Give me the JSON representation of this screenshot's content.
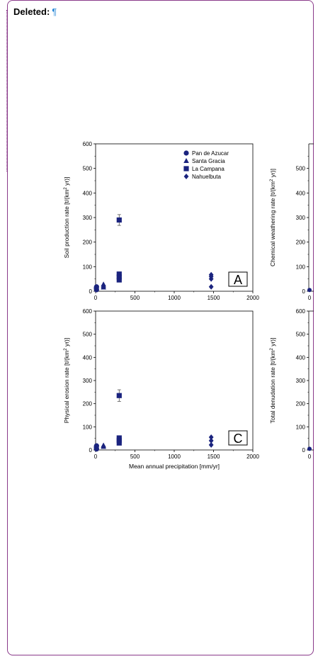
{
  "comment_balloon": {
    "label": "Deleted:",
    "pilcrow": "¶"
  },
  "chart_data": [
    {
      "type": "scatter",
      "panel_letter": "A",
      "ylabel": "Soil production rate [t/(km² yr)]",
      "xlabel": "",
      "xlim": [
        0,
        2000
      ],
      "ylim": [
        0,
        600
      ],
      "x_ticks": [
        0,
        500,
        1000,
        1500,
        2000
      ],
      "y_ticks": [
        0,
        100,
        200,
        300,
        400,
        500,
        600
      ],
      "legend_position": "top-right",
      "series": [
        {
          "name": "Pan de Azucar",
          "marker": "circle",
          "color": "#1a237e",
          "points": [
            {
              "x": 10,
              "y": 10
            },
            {
              "x": 10,
              "y": 14
            },
            {
              "x": 12,
              "y": 6
            },
            {
              "x": 12,
              "y": 18
            }
          ]
        },
        {
          "name": "Santa Gracia",
          "marker": "triangle",
          "color": "#1a237e",
          "points": [
            {
              "x": 100,
              "y": 16
            },
            {
              "x": 100,
              "y": 22
            },
            {
              "x": 100,
              "y": 28
            }
          ]
        },
        {
          "name": "La Campana",
          "marker": "square",
          "color": "#1a237e",
          "points": [
            {
              "x": 300,
              "y": 290,
              "err": 22
            },
            {
              "x": 300,
              "y": 70
            },
            {
              "x": 300,
              "y": 58
            },
            {
              "x": 300,
              "y": 46
            }
          ]
        },
        {
          "name": "Nahuelbuta",
          "marker": "diamond",
          "color": "#1a237e",
          "points": [
            {
              "x": 1470,
              "y": 67
            },
            {
              "x": 1470,
              "y": 60
            },
            {
              "x": 1470,
              "y": 50
            },
            {
              "x": 1470,
              "y": 18
            }
          ]
        }
      ]
    },
    {
      "type": "scatter",
      "panel_letter": "",
      "ylabel": "Chemical weathering rate [t/(km² yr)]",
      "y_ticks": [
        0,
        100,
        200,
        300,
        400,
        500
      ],
      "ylim": [
        0,
        600
      ],
      "note": "panel clipped at right edge"
    },
    {
      "type": "scatter",
      "panel_letter": "C",
      "ylabel": "Physical erosion rate [t/(km² yr)]",
      "xlabel": "Mean annual precipitation [mm/yr]",
      "xlim": [
        0,
        2000
      ],
      "ylim": [
        0,
        600
      ],
      "x_ticks": [
        0,
        500,
        1000,
        1500,
        2000
      ],
      "y_ticks": [
        0,
        100,
        200,
        300,
        400,
        500,
        600
      ],
      "series": [
        {
          "name": "Pan de Azucar",
          "marker": "circle",
          "color": "#1a237e",
          "points": [
            {
              "x": 10,
              "y": 8
            },
            {
              "x": 10,
              "y": 13
            },
            {
              "x": 12,
              "y": 18
            },
            {
              "x": 12,
              "y": 4
            }
          ]
        },
        {
          "name": "Santa Gracia",
          "marker": "triangle",
          "color": "#1a237e",
          "points": [
            {
              "x": 100,
              "y": 14
            },
            {
              "x": 100,
              "y": 20
            }
          ]
        },
        {
          "name": "La Campana",
          "marker": "square",
          "color": "#1a237e",
          "points": [
            {
              "x": 300,
              "y": 235,
              "err": 25
            },
            {
              "x": 300,
              "y": 52
            },
            {
              "x": 300,
              "y": 42
            },
            {
              "x": 300,
              "y": 30
            }
          ]
        },
        {
          "name": "Nahuelbuta",
          "marker": "diamond",
          "color": "#1a237e",
          "points": [
            {
              "x": 1470,
              "y": 55
            },
            {
              "x": 1470,
              "y": 40
            },
            {
              "x": 1470,
              "y": 22
            }
          ]
        }
      ]
    },
    {
      "type": "scatter",
      "panel_letter": "",
      "ylabel": "Total denudation rate [t/(km² yr)]",
      "y_ticks": [
        0,
        100,
        200,
        300,
        400,
        500,
        600
      ],
      "ylim": [
        0,
        600
      ],
      "note": "panel clipped at right edge"
    }
  ]
}
